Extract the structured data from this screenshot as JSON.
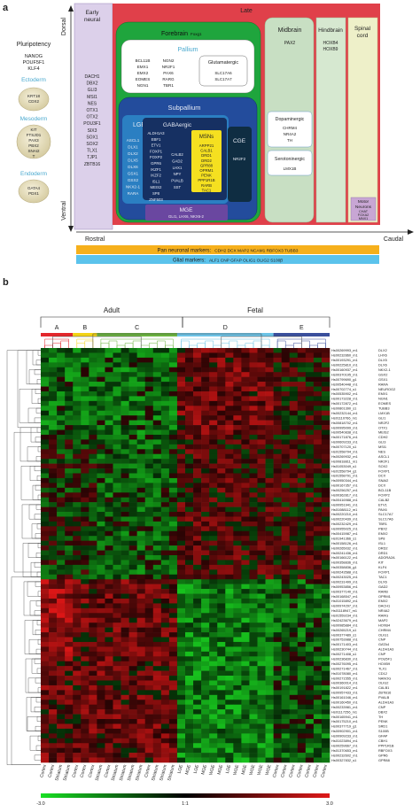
{
  "panel_a": {
    "label": "a",
    "axis": {
      "dorsal": "Dorsal",
      "ventral": "Ventral",
      "rostral": "Rostral",
      "caudal": "Caudal"
    },
    "pluripotency": {
      "title": "Pluripotency",
      "genes": [
        "NANOG",
        "POUF5F1",
        "KLF4"
      ]
    },
    "ectoderm": {
      "title": "Ectoderm",
      "genes": [
        "KRT18",
        "CDX2"
      ]
    },
    "mesoderm": {
      "title": "Mesoderm",
      "genes": [
        "KIT",
        "FTSJD1",
        "PAX3",
        "PBX2",
        "SNAI2",
        "T"
      ]
    },
    "endoderm": {
      "title": "Endoderm",
      "genes": [
        "GATA4",
        "PDX1"
      ]
    },
    "early_neural": {
      "title": [
        "Early",
        "neural"
      ],
      "genes": [
        "DACH1",
        "DBX2",
        "GLI3",
        "MSI1",
        "NES",
        "OTX1",
        "OTX2",
        "POU3F1",
        "SIX3",
        "SOX1",
        "SOX2",
        "TLX1",
        "TJP1",
        "ZBTB16"
      ]
    },
    "late": "Late",
    "forebrain": {
      "title": "Forebrain",
      "sub": "Foxg1"
    },
    "pallium": {
      "title": "Pallium",
      "genes": [
        "BCL11B",
        "NGN2",
        "EMX1",
        "NR2F1",
        "EMX2",
        "PAX6",
        "EOMES",
        "RARG",
        "NGN1",
        "TBR1"
      ]
    },
    "glutamatergic": {
      "title": "Glutamatergic",
      "genes": [
        "SLC17A6",
        "SLC17A7"
      ]
    },
    "subpallium": "Subpallium",
    "lge": {
      "title": "LGE",
      "genes": [
        "ASCL1",
        "DLX1",
        "DLX2",
        "DLX5",
        "DLX6",
        "GSX1",
        "GSX2",
        "NKX2-1",
        "RARA"
      ]
    },
    "gabaergic": {
      "title": "GABAergic",
      "col1": [
        "ALDH1A3",
        "EBF1",
        "ETV1",
        "FOXP1",
        "FOXP2",
        "GPR6",
        "IKZF1",
        "IKZF2",
        "ISL1",
        "MEIS2",
        "SP8",
        "ZNF503"
      ],
      "col2": [
        "CALB2",
        "GAD2",
        "LHX1",
        "NPY",
        "PVALB",
        "SST"
      ]
    },
    "msns": {
      "title": "MSNs",
      "genes": [
        "ARPP21",
        "CALB1",
        "DRD1",
        "DRD2",
        "GPR88",
        "OPRM1",
        "PENK",
        "PPP1R1B",
        "RARB",
        "TAC1"
      ]
    },
    "cge": {
      "title": "CGE",
      "genes": [
        "NR2F2"
      ]
    },
    "mge": {
      "title": "MGE",
      "genes": "GLI1, LHX6, NKX6-2"
    },
    "midbrain": {
      "title": "Midbrain",
      "genes": [
        "PAX2"
      ]
    },
    "dopaminergic": {
      "title": "Dopaminergic",
      "genes": [
        "CHRM4",
        "NR4A2",
        "TH"
      ]
    },
    "serotoninergic": {
      "title": "Serotoninergic",
      "genes": [
        "LMX1B"
      ]
    },
    "hindbrain": {
      "title": "Hindbrain",
      "genes": [
        "HOXB4",
        "HOXB9"
      ]
    },
    "spinal_cord": {
      "title": [
        "Spinal",
        "cord"
      ]
    },
    "motor_neurons": {
      "title": [
        "Motor",
        "Neurons"
      ],
      "genes": [
        "CHAT",
        "FOXA2",
        "MNX1"
      ]
    },
    "pan_neuronal": {
      "label": "Pan neuronal markers:",
      "genes": "CDH2  DCX  MAP2  NCAM1  RBFOX3  TUBB3"
    },
    "glial": {
      "label": "Glial markers:",
      "genes": "ALF1  CNP  GFAP  OLIG1  OLIG2  S100β"
    }
  },
  "panel_b": {
    "label": "b",
    "group_adult": "Adult",
    "group_fetal": "Fetal",
    "clusters": [
      {
        "label": "A",
        "color": "#e3262b"
      },
      {
        "label": "B",
        "color": "#f3d313"
      },
      {
        "label": "C",
        "color": "#6ab33e"
      },
      {
        "label": "D",
        "color": "#6cc3e6"
      },
      {
        "label": "E",
        "color": "#3a4f9c"
      }
    ],
    "rows": [
      {
        "probe": "Hs00269993_m1",
        "gene": "DLX2"
      },
      {
        "probe": "Hs00232860_m1",
        "gene": "LHX6"
      },
      {
        "probe": "Hs00193291_m1",
        "gene": "DLX5"
      },
      {
        "probe": "Hs00225810_m1",
        "gene": "DLX6"
      },
      {
        "probe": "Hs00160937_m1",
        "gene": "NKX2-1"
      },
      {
        "probe": "Hs00370195_m1",
        "gene": "GSX2"
      },
      {
        "probe": "Hs00799690_g1",
        "gene": "GSX1"
      },
      {
        "probe": "Hs00540448_m1",
        "gene": "RARA"
      },
      {
        "probe": "Hs00702774_s1",
        "gene": "NEUROG2"
      },
      {
        "probe": "Hs00535902_m1",
        "gene": "EMX1"
      },
      {
        "probe": "Hs00173228_m1",
        "gene": "NGN1"
      },
      {
        "probe": "Hs00172872_m1",
        "gene": "EOMES"
      },
      {
        "probe": "Hs00801390_s1",
        "gene": "TUBB3"
      },
      {
        "probe": "Hs00232144_m1",
        "gene": "LMX1B"
      },
      {
        "probe": "Hs01110766_m1",
        "gene": "GLI1"
      },
      {
        "probe": "Hs00818702_m1",
        "gene": "NR2F2"
      },
      {
        "probe": "Hs00995099_m1",
        "gene": "OTX1"
      },
      {
        "probe": "Hs00540838_m1",
        "gene": "MEIS2"
      },
      {
        "probe": "Hs00171876_m1",
        "gene": "CDH2"
      },
      {
        "probe": "Hs00609233_m1",
        "gene": "GLI3"
      },
      {
        "probe": "Hs00707120_s1",
        "gene": "MSI1"
      },
      {
        "probe": "Hs01558794_m1",
        "gene": "NES"
      },
      {
        "probe": "Hs00269932_m1",
        "gene": "ASCL1"
      },
      {
        "probe": "Hs00818811_m1",
        "gene": "NR2F1"
      },
      {
        "probe": "Hs01053049_s1",
        "gene": "SOX2"
      },
      {
        "probe": "Hs01558794_g1",
        "gene": "FOXP1"
      },
      {
        "probe": "Hs01558791_m1",
        "gene": "DCX"
      },
      {
        "probe": "Hs00950344_m1",
        "gene": "SNAI2"
      },
      {
        "probe": "Hs00167357_m1",
        "gene": "DCX"
      },
      {
        "probe": "Hs00256257_m1",
        "gene": "BCL11B"
      },
      {
        "probe": "Hs00362817_m1",
        "gene": "FOXP2"
      },
      {
        "probe": "Hs00416988_m1",
        "gene": "CALB2"
      },
      {
        "probe": "Hs00951941_m1",
        "gene": "ETV1"
      },
      {
        "probe": "Hs01088112_m1",
        "gene": "PAX6"
      },
      {
        "probe": "Hs00220210_m1",
        "gene": "SLC17A7"
      },
      {
        "probe": "Hs00220439_m1",
        "gene": "SLC17A6"
      },
      {
        "probe": "Hs00232429_m1",
        "gene": "TBR1"
      },
      {
        "probe": "Hs00955025_m1",
        "gene": "PBX2"
      },
      {
        "probe": "Hs00415987_m1",
        "gene": "EMX2"
      },
      {
        "probe": "Hs01941366_s1",
        "gene": "SP8"
      },
      {
        "probe": "Hs00158126_m1",
        "gene": "ISL1"
      },
      {
        "probe": "Hs00265032_m1",
        "gene": "DRD2"
      },
      {
        "probe": "Hs00241436_m1",
        "gene": "DRD1"
      },
      {
        "probe": "Hs00166122_m1",
        "gene": "ADORA2A"
      },
      {
        "probe": "Hs00358836_m1",
        "gene": "KIT"
      },
      {
        "probe": "Hs00358836_g1",
        "gene": "KLF4"
      },
      {
        "probe": "Hs00243588_m1",
        "gene": "FOXP1"
      },
      {
        "probe": "Hs00243025_m1",
        "gene": "TAC1"
      },
      {
        "probe": "Hs00231499_m1",
        "gene": "DLX6"
      },
      {
        "probe": "Hs00953856_m1",
        "gene": "GAD2"
      },
      {
        "probe": "Hs00377140_m1",
        "gene": "RARB"
      },
      {
        "probe": "Hs00168547_m1",
        "gene": "OPRM1"
      },
      {
        "probe": "Hs01015892_m1",
        "gene": "EMX2"
      },
      {
        "probe": "Hs00974297_m1",
        "gene": "DACH1"
      },
      {
        "probe": "Hs01118947_m1",
        "gene": "NR4A2"
      },
      {
        "probe": "Hs01559234_m1",
        "gene": "RARG"
      },
      {
        "probe": "Hs02423679_m1",
        "gene": "MAP2"
      },
      {
        "probe": "Hs00985884_m1",
        "gene": "HOXB4"
      },
      {
        "probe": "Hs00265219_s1",
        "gene": "CHRM4"
      },
      {
        "probe": "Hs00377489_s1",
        "gene": "OLIG1"
      },
      {
        "probe": "Hs00753988_m1",
        "gene": "CNP"
      },
      {
        "probe": "Hs00171403_m1",
        "gene": "GATA4"
      },
      {
        "probe": "Hs00230744_m1",
        "gene": "ALDH1A3"
      },
      {
        "probe": "Hs00271408_s1",
        "gene": "CNP"
      },
      {
        "probe": "Hs00236830_m1",
        "gene": "POU5F1"
      },
      {
        "probe": "Hs00276095_m1",
        "gene": "HOXB9"
      },
      {
        "probe": "Hs00271467_m1",
        "gene": "TLX1"
      },
      {
        "probe": "Hs01078080_m1",
        "gene": "CD12"
      },
      {
        "probe": "Hs00271555_m1",
        "gene": "NANOG"
      },
      {
        "probe": "Hs00360014_m1",
        "gene": "OLIG2"
      },
      {
        "probe": "Hs00191822_m1",
        "gene": "CALB1"
      },
      {
        "probe": "Hs00957433_m1",
        "gene": "ZBTB16"
      },
      {
        "probe": "Hs00161046_m1",
        "gene": "PVALB"
      },
      {
        "probe": "Hs00160450_m1",
        "gene": "ALDH1A3"
      },
      {
        "probe": "Hs00233981_m1",
        "gene": "CNP"
      },
      {
        "probe": "Hs01117256_m1",
        "gene": "DBX2"
      },
      {
        "probe": "Hs00165941_m1",
        "gene": "TH"
      },
      {
        "probe": "Hs00175210_m1",
        "gene": "PENK"
      },
      {
        "probe": "Hs00377719_g1",
        "gene": "SRD1"
      },
      {
        "probe": "Hs00902901_m1",
        "gene": "S100B"
      },
      {
        "probe": "Hs00909233_m1",
        "gene": "GFAP"
      },
      {
        "probe": "Hs01023894_m1",
        "gene": "CBH1"
      },
      {
        "probe": "Hs00259667_m1",
        "gene": "PPP1R1B"
      },
      {
        "probe": "Hs01370653_m1",
        "gene": "RBFOX3"
      },
      {
        "probe": "Hs00232602_m1",
        "gene": "GPR6"
      },
      {
        "probe": "Hs00327832_s1",
        "gene": "GPR88"
      }
    ],
    "samples": [
      {
        "label": "Cortex",
        "cluster": 0
      },
      {
        "label": "Cortex",
        "cluster": 0
      },
      {
        "label": "Striatum",
        "cluster": 0
      },
      {
        "label": "Striatum",
        "cluster": 0
      },
      {
        "label": "Cortex",
        "cluster": 1
      },
      {
        "label": "Cortex",
        "cluster": 1
      },
      {
        "label": "Cortex",
        "cluster": 1
      },
      {
        "label": "Striatum",
        "cluster": 2
      },
      {
        "label": "Cortex",
        "cluster": 2
      },
      {
        "label": "Striatum",
        "cluster": 2
      },
      {
        "label": "Striatum",
        "cluster": 2
      },
      {
        "label": "Striatum",
        "cluster": 2
      },
      {
        "label": "Striatum",
        "cluster": 2
      },
      {
        "label": "Cortex",
        "cluster": 2
      },
      {
        "label": "Striatum",
        "cluster": 2
      },
      {
        "label": "Striatum",
        "cluster": 2
      },
      {
        "label": "Striatum",
        "cluster": 2
      },
      {
        "label": "LGE",
        "cluster": 3
      },
      {
        "label": "MGE",
        "cluster": 3
      },
      {
        "label": "LGE",
        "cluster": 3
      },
      {
        "label": "MGE",
        "cluster": 3
      },
      {
        "label": "WGE",
        "cluster": 3
      },
      {
        "label": "MGE",
        "cluster": 3
      },
      {
        "label": "LGE",
        "cluster": 3
      },
      {
        "label": "WGE",
        "cluster": 3
      },
      {
        "label": "MGE",
        "cluster": 3
      },
      {
        "label": "WGE",
        "cluster": 3
      },
      {
        "label": "WGE",
        "cluster": 3
      },
      {
        "label": "WGE",
        "cluster": 3
      },
      {
        "label": "Cortex",
        "cluster": 4
      },
      {
        "label": "Cortex",
        "cluster": 4
      },
      {
        "label": "Cortex",
        "cluster": 4
      },
      {
        "label": "Cortex",
        "cluster": 4
      },
      {
        "label": "Cortex",
        "cluster": 4
      },
      {
        "label": "Cortex",
        "cluster": 4
      },
      {
        "label": "Cortex",
        "cluster": 4
      }
    ],
    "scale": {
      "min_label": "-3.0",
      "mid_label": "1:1",
      "max_label": "3.0",
      "min_color": "#19e024",
      "mid_color": "#000000",
      "max_color": "#e01919"
    }
  }
}
